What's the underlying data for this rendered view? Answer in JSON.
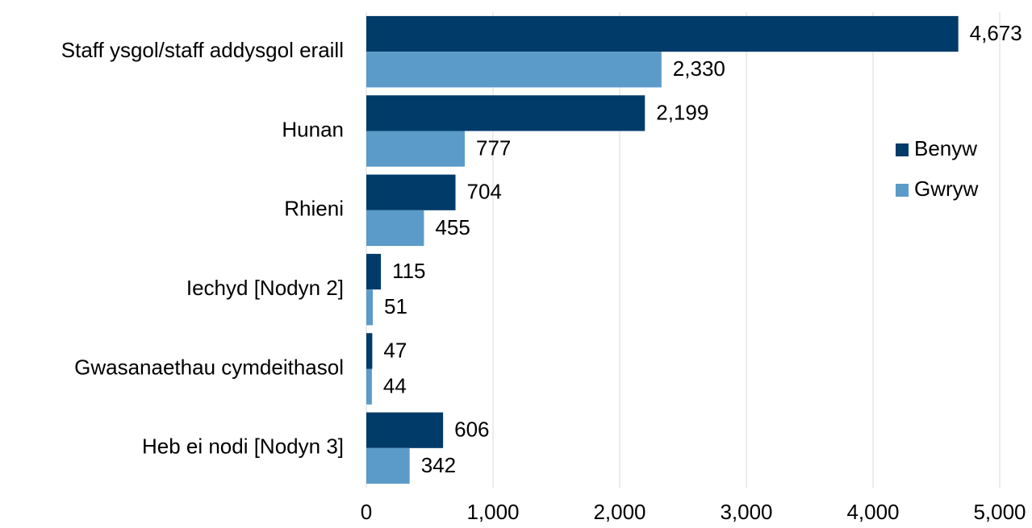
{
  "chart_data": {
    "type": "bar",
    "orientation": "horizontal",
    "categories": [
      "Staff ysgol/staff addysgol eraill",
      "Hunan",
      "Rhieni",
      "Iechyd [Nodyn 2]",
      "Gwasanaethau cymdeithasol",
      "Heb ei nodi [Nodyn 3]"
    ],
    "series": [
      {
        "name": "Benyw",
        "color": "#003b6a",
        "values": [
          4673,
          2199,
          704,
          115,
          47,
          606
        ],
        "value_labels": [
          "4,673",
          "2,199",
          "704",
          "115",
          "47",
          "606"
        ]
      },
      {
        "name": "Gwryw",
        "color": "#5b9bc9",
        "values": [
          2330,
          777,
          455,
          51,
          44,
          342
        ],
        "value_labels": [
          "2,330",
          "777",
          "455",
          "51",
          "44",
          "342"
        ]
      }
    ],
    "xlim": [
      0,
      5000
    ],
    "xticks": [
      0,
      {
        "value": 1000,
        "label": "1,000"
      },
      {
        "value": 2000,
        "label": "2,000"
      },
      {
        "value": 3000,
        "label": "3,000"
      },
      {
        "value": 4000,
        "label": "4,000"
      },
      {
        "value": 5000,
        "label": "5,000"
      }
    ],
    "grid": true,
    "legend": "right"
  }
}
